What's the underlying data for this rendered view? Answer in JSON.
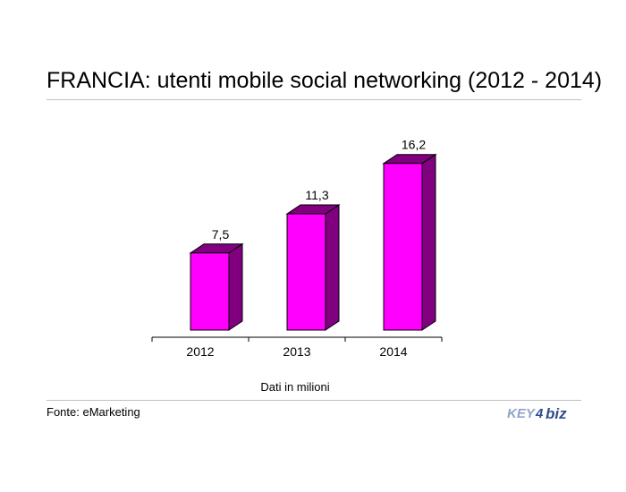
{
  "header": {
    "title": "FRANCIA: utenti mobile social networking (2012 - 2014)"
  },
  "chart_data": {
    "type": "bar",
    "title": "FRANCIA: utenti mobile social networking (2012 - 2014)",
    "categories": [
      "2012",
      "2013",
      "2014"
    ],
    "values": [
      7.5,
      11.3,
      16.2
    ],
    "value_labels": [
      "7,5",
      "11,3",
      "16,2"
    ],
    "ylim": [
      0,
      18
    ],
    "grid": false,
    "legend": "none",
    "xlabel": "",
    "ylabel": "",
    "bar_color": "#ff00ff",
    "bar_side_color": "#800080"
  },
  "footer": {
    "unit_note": "Dati in milioni",
    "source": "Fonte: eMarketing",
    "logo_text": "KEY4biz"
  }
}
